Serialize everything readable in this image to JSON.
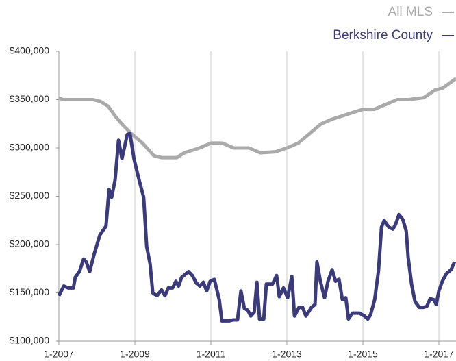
{
  "chart_data": {
    "type": "line",
    "legend": "top-right",
    "xlim": [
      2007,
      2017.45
    ],
    "ylim": [
      100000,
      400000
    ],
    "yticks": [
      {
        "value": 100000,
        "label": "$100,000"
      },
      {
        "value": 150000,
        "label": "$150,000"
      },
      {
        "value": 200000,
        "label": "$200,000"
      },
      {
        "value": 250000,
        "label": "$250,000"
      },
      {
        "value": 300000,
        "label": "$300,000"
      },
      {
        "value": 350000,
        "label": "$350,000"
      },
      {
        "value": 400000,
        "label": "$400,000"
      }
    ],
    "xticks": [
      {
        "value": 2007,
        "label": "1-2007"
      },
      {
        "value": 2009,
        "label": "1-2009"
      },
      {
        "value": 2011,
        "label": "1-2011"
      },
      {
        "value": 2013,
        "label": "1-2013"
      },
      {
        "value": 2015,
        "label": "1-2015"
      },
      {
        "value": 2017,
        "label": "1-2017"
      }
    ],
    "series": [
      {
        "name": "All MLS",
        "color": "#aaaaaa",
        "x": [
          2007.0,
          2007.1,
          2007.9,
          2008.1,
          2008.3,
          2008.5,
          2008.7,
          2008.9,
          2009.2,
          2009.5,
          2009.7,
          2010.1,
          2010.3,
          2010.7,
          2011.0,
          2011.3,
          2011.6,
          2012.0,
          2012.3,
          2012.7,
          2013.0,
          2013.3,
          2013.6,
          2013.9,
          2014.2,
          2014.6,
          2015.0,
          2015.3,
          2015.6,
          2015.9,
          2016.2,
          2016.6,
          2016.9,
          2017.1,
          2017.45
        ],
        "values": [
          352000,
          350000,
          350000,
          348000,
          343000,
          332000,
          323000,
          315000,
          305000,
          292000,
          290000,
          290000,
          295000,
          300000,
          305000,
          305000,
          300000,
          300000,
          295000,
          296000,
          300000,
          305000,
          315000,
          325000,
          330000,
          335000,
          340000,
          340000,
          345000,
          350000,
          350000,
          352000,
          360000,
          362000,
          372000
        ]
      },
      {
        "name": "Berkshire County",
        "color": "#3b3a7a",
        "x": [
          2007.0,
          2007.13,
          2007.25,
          2007.38,
          2007.43,
          2007.54,
          2007.65,
          2007.72,
          2007.81,
          2007.92,
          2008.08,
          2008.24,
          2008.32,
          2008.39,
          2008.48,
          2008.57,
          2008.66,
          2008.8,
          2008.87,
          2008.98,
          2009.11,
          2009.23,
          2009.31,
          2009.4,
          2009.47,
          2009.58,
          2009.7,
          2009.79,
          2009.88,
          2009.99,
          2010.08,
          2010.15,
          2010.23,
          2010.41,
          2010.51,
          2010.62,
          2010.71,
          2010.8,
          2010.89,
          2010.98,
          2011.09,
          2011.22,
          2011.29,
          2011.49,
          2011.58,
          2011.7,
          2011.79,
          2011.88,
          2011.97,
          2012.05,
          2012.14,
          2012.21,
          2012.28,
          2012.39,
          2012.46,
          2012.62,
          2012.73,
          2012.8,
          2012.91,
          2013.02,
          2013.13,
          2013.2,
          2013.32,
          2013.41,
          2013.5,
          2013.65,
          2013.74,
          2013.79,
          2013.88,
          2013.99,
          2014.08,
          2014.19,
          2014.28,
          2014.37,
          2014.46,
          2014.55,
          2014.62,
          2014.73,
          2014.91,
          2015.04,
          2015.13,
          2015.2,
          2015.31,
          2015.41,
          2015.49,
          2015.56,
          2015.68,
          2015.79,
          2015.86,
          2015.95,
          2016.05,
          2016.14,
          2016.19,
          2016.28,
          2016.37,
          2016.48,
          2016.59,
          2016.68,
          2016.77,
          2016.86,
          2016.93,
          2017.0,
          2017.09,
          2017.2,
          2017.32,
          2017.41
        ],
        "values": [
          147000,
          157000,
          155000,
          155000,
          166000,
          172000,
          185000,
          182000,
          172000,
          189000,
          210000,
          219000,
          257000,
          249000,
          267000,
          308000,
          289000,
          314000,
          315000,
          288000,
          267000,
          249000,
          198000,
          180000,
          150000,
          147000,
          153000,
          147000,
          155000,
          155000,
          162000,
          157000,
          166000,
          172000,
          168000,
          160000,
          157000,
          161000,
          152000,
          162000,
          164000,
          143000,
          121000,
          121000,
          122000,
          122000,
          152000,
          134000,
          132000,
          126000,
          130000,
          161000,
          123000,
          123000,
          159000,
          159000,
          168000,
          146000,
          155000,
          145000,
          167000,
          126000,
          135000,
          135000,
          126000,
          135000,
          138000,
          182000,
          162000,
          145000,
          162000,
          174000,
          162000,
          164000,
          143000,
          145000,
          123000,
          129000,
          129000,
          126000,
          123000,
          127000,
          143000,
          173000,
          218000,
          225000,
          218000,
          216000,
          221000,
          231000,
          226000,
          214000,
          187000,
          159000,
          141000,
          135000,
          135000,
          136000,
          144000,
          143000,
          138000,
          152000,
          162000,
          170000,
          174000,
          182000
        ]
      }
    ]
  }
}
